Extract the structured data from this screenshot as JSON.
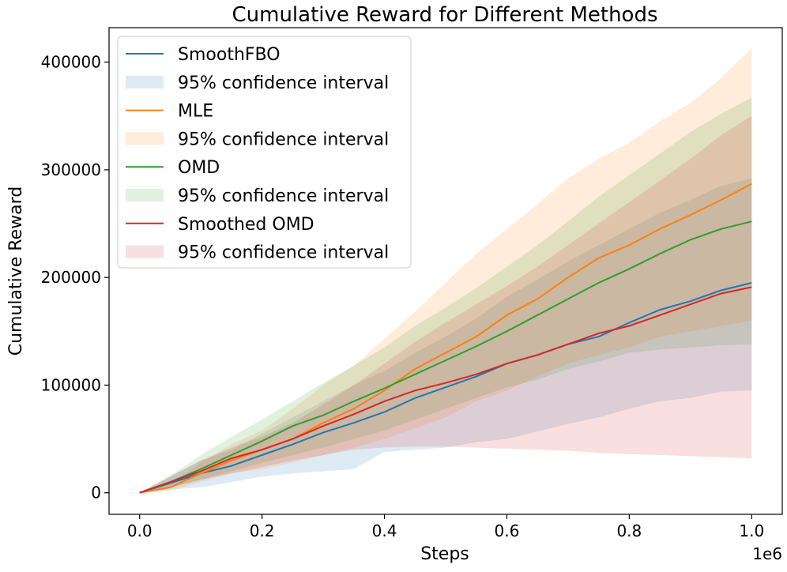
{
  "chart_data": {
    "type": "line",
    "title": "Cumulative Reward for Different Methods",
    "xlabel": "Steps",
    "ylabel": "Cumulative Reward",
    "x_scale_label": "1e6",
    "xlim": [
      -0.05,
      1.05
    ],
    "ylim": [
      -20000,
      432000
    ],
    "x_ticks": [
      0.0,
      0.2,
      0.4,
      0.6,
      0.8,
      1.0
    ],
    "x_tick_labels": [
      "0.0",
      "0.2",
      "0.4",
      "0.6",
      "0.8",
      "1.0"
    ],
    "y_ticks": [
      0,
      100000,
      200000,
      300000,
      400000
    ],
    "y_tick_labels": [
      "0",
      "100000",
      "200000",
      "300000",
      "400000"
    ],
    "x": [
      0.0,
      0.05,
      0.1,
      0.15,
      0.2,
      0.25,
      0.3,
      0.35,
      0.4,
      0.45,
      0.5,
      0.55,
      0.6,
      0.65,
      0.7,
      0.75,
      0.8,
      0.85,
      0.9,
      0.95,
      1.0
    ],
    "legend_position": "upper-left",
    "series": [
      {
        "name": "SmoothFBO",
        "ci_label": "95% confidence interval",
        "color": "#1f77b4",
        "mean": [
          0,
          9000,
          18000,
          25000,
          35000,
          45000,
          56000,
          65000,
          75000,
          88000,
          98000,
          108000,
          120000,
          128000,
          138000,
          145000,
          158000,
          170000,
          178000,
          188000,
          195000
        ],
        "lower": [
          0,
          3000,
          5000,
          10000,
          15000,
          18000,
          20000,
          22000,
          38000,
          40000,
          42000,
          47000,
          50000,
          57000,
          64000,
          70000,
          78000,
          85000,
          88000,
          94000,
          95000
        ],
        "upper": [
          0,
          15000,
          30000,
          40000,
          55000,
          70000,
          85000,
          100000,
          113000,
          130000,
          145000,
          162000,
          182000,
          198000,
          215000,
          230000,
          245000,
          260000,
          272000,
          285000,
          292000
        ]
      },
      {
        "name": "MLE",
        "ci_label": "95% confidence interval",
        "color": "#ff7f0e",
        "mean": [
          0,
          5000,
          18000,
          30000,
          40000,
          50000,
          65000,
          78000,
          95000,
          115000,
          130000,
          145000,
          165000,
          180000,
          200000,
          218000,
          230000,
          245000,
          258000,
          272000,
          287000
        ],
        "lower": [
          0,
          2000,
          10000,
          18000,
          22000,
          28000,
          35000,
          42000,
          50000,
          60000,
          70000,
          85000,
          95000,
          108000,
          120000,
          128000,
          135000,
          145000,
          150000,
          155000,
          160000
        ],
        "upper": [
          0,
          8000,
          28000,
          45000,
          58000,
          78000,
          100000,
          118000,
          143000,
          168000,
          195000,
          222000,
          245000,
          268000,
          292000,
          310000,
          325000,
          345000,
          362000,
          385000,
          413000
        ]
      },
      {
        "name": "OMD",
        "ci_label": "95% confidence interval",
        "color": "#2ca02c",
        "mean": [
          0,
          10000,
          22000,
          35000,
          48000,
          62000,
          72000,
          85000,
          97000,
          110000,
          123000,
          136000,
          150000,
          165000,
          180000,
          195000,
          208000,
          222000,
          235000,
          245000,
          252000
        ],
        "lower": [
          0,
          5000,
          12000,
          20000,
          28000,
          35000,
          42000,
          50000,
          58000,
          68000,
          78000,
          88000,
          98000,
          105000,
          115000,
          122000,
          130000,
          133000,
          135000,
          137000,
          138000
        ],
        "upper": [
          0,
          16000,
          35000,
          52000,
          68000,
          85000,
          102000,
          118000,
          135000,
          155000,
          172000,
          190000,
          210000,
          230000,
          252000,
          275000,
          295000,
          315000,
          335000,
          352000,
          367000
        ]
      },
      {
        "name": "Smoothed OMD",
        "ci_label": "95% confidence interval",
        "color": "#d62728",
        "mean": [
          0,
          10000,
          20000,
          32000,
          40000,
          50000,
          62000,
          73000,
          85000,
          95000,
          102000,
          110000,
          120000,
          128000,
          138000,
          148000,
          155000,
          165000,
          175000,
          185000,
          191000
        ],
        "lower": [
          0,
          5000,
          12000,
          18000,
          24000,
          30000,
          35000,
          40000,
          42000,
          43000,
          43000,
          42000,
          41000,
          40000,
          39000,
          37000,
          36000,
          35000,
          34000,
          33000,
          32000
        ],
        "upper": [
          0,
          15000,
          30000,
          42000,
          52000,
          65000,
          82000,
          100000,
          120000,
          140000,
          158000,
          175000,
          192000,
          210000,
          230000,
          250000,
          270000,
          290000,
          310000,
          332000,
          350000
        ]
      }
    ]
  }
}
